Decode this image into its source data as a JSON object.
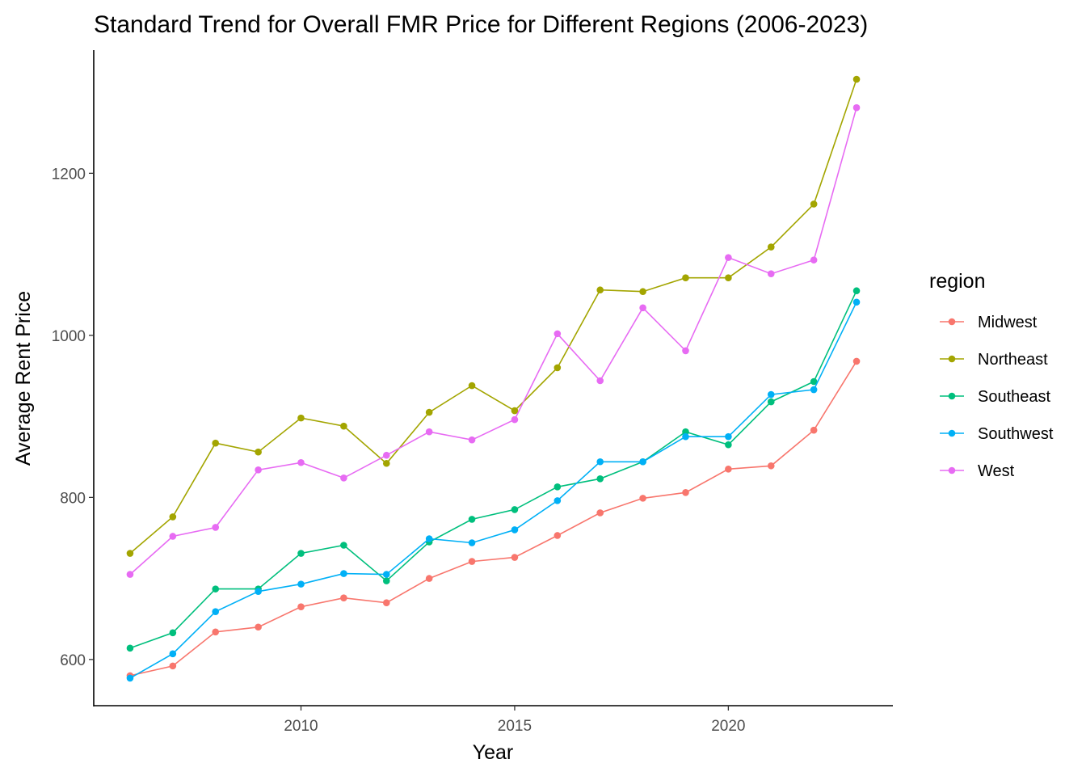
{
  "chart_data": {
    "type": "line",
    "title": "Standard Trend for Overall FMR Price for Different Regions (2006-2023)",
    "xlabel": "Year",
    "ylabel": "Average Rent Price",
    "x": [
      2006,
      2007,
      2008,
      2009,
      2010,
      2011,
      2012,
      2013,
      2014,
      2015,
      2016,
      2017,
      2018,
      2019,
      2020,
      2021,
      2022,
      2023
    ],
    "xlim": [
      2005.15,
      2023.85
    ],
    "ylim": [
      543,
      1352
    ],
    "x_ticks": [
      2010,
      2015,
      2020
    ],
    "y_ticks": [
      600,
      800,
      1000,
      1200
    ],
    "x_tick_labels": [
      "2010",
      "2015",
      "2020"
    ],
    "y_tick_labels": [
      "600",
      "800",
      "1000",
      "1200"
    ],
    "grid": false,
    "legend": {
      "title": "region",
      "position": "right"
    },
    "series": [
      {
        "name": "Midwest",
        "color": "#F8766D",
        "values": [
          580,
          592,
          634,
          640,
          665,
          676,
          670,
          700,
          721,
          726,
          753,
          781,
          799,
          806,
          835,
          839,
          883,
          968
        ]
      },
      {
        "name": "Northeast",
        "color": "#A3A500",
        "values": [
          731,
          776,
          867,
          856,
          898,
          888,
          842,
          905,
          938,
          907,
          960,
          1056,
          1054,
          1071,
          1071,
          1109,
          1162,
          1316
        ]
      },
      {
        "name": "Southeast",
        "color": "#00BF7D",
        "values": [
          614,
          633,
          687,
          687,
          731,
          741,
          697,
          745,
          773,
          785,
          813,
          823,
          844,
          881,
          865,
          918,
          943,
          1055
        ]
      },
      {
        "name": "Southwest",
        "color": "#00B0F6",
        "values": [
          577,
          607,
          659,
          684,
          693,
          706,
          705,
          749,
          744,
          760,
          796,
          844,
          844,
          875,
          875,
          927,
          933,
          1041
        ]
      },
      {
        "name": "West",
        "color": "#E76BF3",
        "values": [
          705,
          752,
          763,
          834,
          843,
          824,
          852,
          881,
          871,
          896,
          1002,
          944,
          1034,
          981,
          1096,
          1076,
          1093,
          1281
        ]
      }
    ]
  }
}
